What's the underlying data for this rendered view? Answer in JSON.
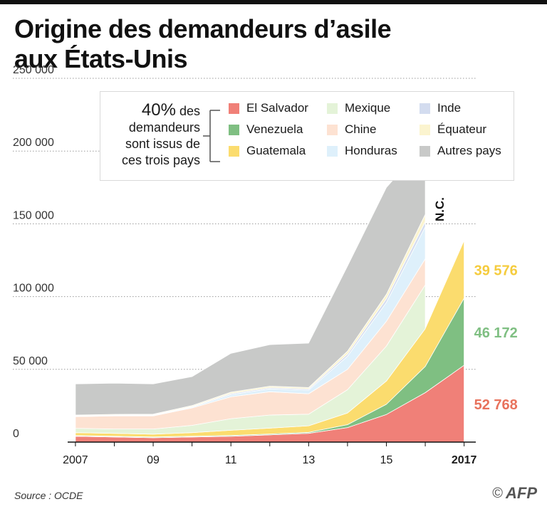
{
  "title": [
    "Origine des demandeurs d’asile",
    "aux États-Unis"
  ],
  "legend_note": {
    "pct": "40%",
    "text_1": " des",
    "text_2": "demandeurs",
    "text_3": "sont issus de",
    "text_4": "ces trois pays"
  },
  "source": "Source : OCDE",
  "credit": {
    "symbol": "©",
    "agency": "AFP"
  },
  "chart_data": {
    "type": "area",
    "stacked": true,
    "x": [
      2007,
      2008,
      2009,
      2010,
      2011,
      2012,
      2013,
      2014,
      2015,
      2016,
      2017
    ],
    "x_tick_labels": [
      {
        "x": 2007,
        "label": "2007"
      },
      {
        "x": 2009,
        "label": "09"
      },
      {
        "x": 2011,
        "label": "11"
      },
      {
        "x": 2013,
        "label": "13"
      },
      {
        "x": 2015,
        "label": "15"
      },
      {
        "x": 2017,
        "label": "2017"
      }
    ],
    "y_ticks": [
      0,
      50000,
      100000,
      150000,
      200000,
      250000
    ],
    "y_tick_labels": [
      "0",
      "50 000",
      "100 000",
      "150 000",
      "200 000",
      "250 000"
    ],
    "ylim": [
      0,
      250000
    ],
    "xlim": [
      2006.8,
      2017.3
    ],
    "grid": "horizontal-dotted",
    "legend_position": "top",
    "nc_label": "N.C.",
    "series": [
      {
        "name": "El Salvador",
        "color": "#f08078",
        "values": [
          4000,
          3500,
          3000,
          3500,
          4000,
          5000,
          6000,
          10000,
          19000,
          34000,
          52768
        ]
      },
      {
        "name": "Venezuela",
        "color": "#7fbf82",
        "values": [
          500,
          500,
          500,
          500,
          600,
          600,
          700,
          2000,
          7000,
          18000,
          46172
        ]
      },
      {
        "name": "Guatemala",
        "color": "#fbdc6e",
        "values": [
          2000,
          2000,
          2000,
          2500,
          3500,
          4000,
          4500,
          8000,
          16000,
          26000,
          39576
        ]
      },
      {
        "name": "Mexique",
        "color": "#e4f3d8",
        "values": [
          3000,
          3000,
          3500,
          5000,
          8000,
          9000,
          8000,
          16000,
          24000,
          30000,
          null
        ]
      },
      {
        "name": "Chine",
        "color": "#fde2d2",
        "values": [
          8000,
          9000,
          9000,
          12000,
          15000,
          16000,
          14000,
          14000,
          17000,
          18000,
          null
        ]
      },
      {
        "name": "Honduras",
        "color": "#def0fb",
        "values": [
          300,
          300,
          400,
          500,
          1500,
          2000,
          2500,
          9000,
          13000,
          22000,
          null
        ]
      },
      {
        "name": "Inde",
        "color": "#d3dcef",
        "values": [
          300,
          300,
          300,
          400,
          700,
          800,
          800,
          1500,
          2500,
          3500,
          null
        ]
      },
      {
        "name": "Équateur",
        "color": "#fbf4cf",
        "values": [
          500,
          500,
          500,
          700,
          1000,
          1000,
          1000,
          2000,
          3000,
          5000,
          null
        ]
      },
      {
        "name": "Autres pays",
        "color": "#c8c9c8",
        "values": [
          21400,
          21400,
          20800,
          19900,
          26700,
          28600,
          30500,
          58500,
          73500,
          48500,
          null
        ]
      }
    ],
    "value_labels": [
      {
        "series": "Guatemala",
        "text": "39 576",
        "color": "#f5cc3e"
      },
      {
        "series": "Venezuela",
        "text": "46 172",
        "color": "#7fbf82"
      },
      {
        "series": "El Salvador",
        "text": "52 768",
        "color": "#e8725c"
      }
    ]
  }
}
